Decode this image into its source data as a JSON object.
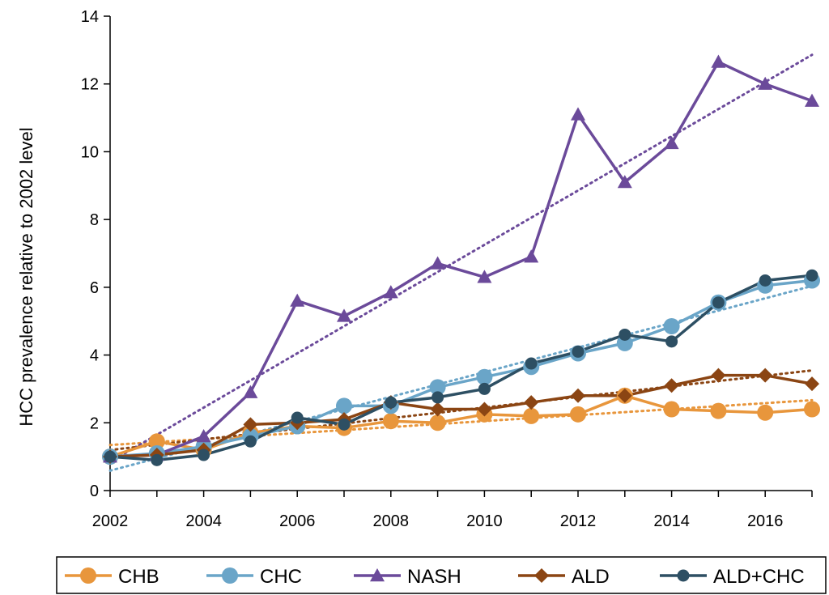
{
  "chart_data": {
    "type": "line",
    "title": "",
    "xlabel": "",
    "ylabel": "HCC prevalence relative to 2002 level",
    "xlim": [
      2002,
      2017
    ],
    "ylim": [
      0,
      14
    ],
    "x_ticks": [
      2002,
      2004,
      2006,
      2008,
      2010,
      2012,
      2014,
      2016
    ],
    "y_ticks": [
      0,
      2,
      4,
      6,
      8,
      10,
      12,
      14
    ],
    "grid": false,
    "legend_position": "bottom",
    "x": [
      2002,
      2003,
      2004,
      2005,
      2006,
      2007,
      2008,
      2009,
      2010,
      2011,
      2012,
      2013,
      2014,
      2015,
      2016,
      2017
    ],
    "series": [
      {
        "name": "CHB",
        "marker": "circle",
        "color": "#E8963C",
        "trendline": "linear",
        "values": [
          1.0,
          1.45,
          1.2,
          1.7,
          1.9,
          1.85,
          2.05,
          2.0,
          2.25,
          2.2,
          2.25,
          2.8,
          2.4,
          2.35,
          2.3,
          2.4
        ]
      },
      {
        "name": "CHC",
        "marker": "circle",
        "color": "#6AA5C8",
        "trendline": "linear",
        "values": [
          1.0,
          1.1,
          1.3,
          1.6,
          1.9,
          2.5,
          2.5,
          3.05,
          3.35,
          3.65,
          4.05,
          4.35,
          4.85,
          5.55,
          6.05,
          6.2
        ]
      },
      {
        "name": "NASH",
        "marker": "triangle",
        "color": "#6B4A9A",
        "trendline": "linear",
        "values": [
          1.0,
          1.05,
          1.6,
          2.9,
          5.6,
          5.15,
          5.85,
          6.7,
          6.3,
          6.9,
          11.1,
          9.1,
          10.25,
          12.65,
          12.0,
          11.5
        ]
      },
      {
        "name": "ALD",
        "marker": "diamond",
        "color": "#8B4513",
        "trendline": "linear",
        "values": [
          1.0,
          1.05,
          1.2,
          1.95,
          2.0,
          2.1,
          2.6,
          2.4,
          2.4,
          2.6,
          2.8,
          2.8,
          3.1,
          3.4,
          3.4,
          3.15
        ]
      },
      {
        "name": "ALD+CHC",
        "marker": "circle-small",
        "color": "#2D4F63",
        "trendline": "none",
        "values": [
          1.0,
          0.9,
          1.05,
          1.45,
          2.15,
          1.95,
          2.6,
          2.75,
          3.0,
          3.75,
          4.1,
          4.6,
          4.4,
          5.55,
          6.2,
          6.35
        ]
      }
    ]
  }
}
